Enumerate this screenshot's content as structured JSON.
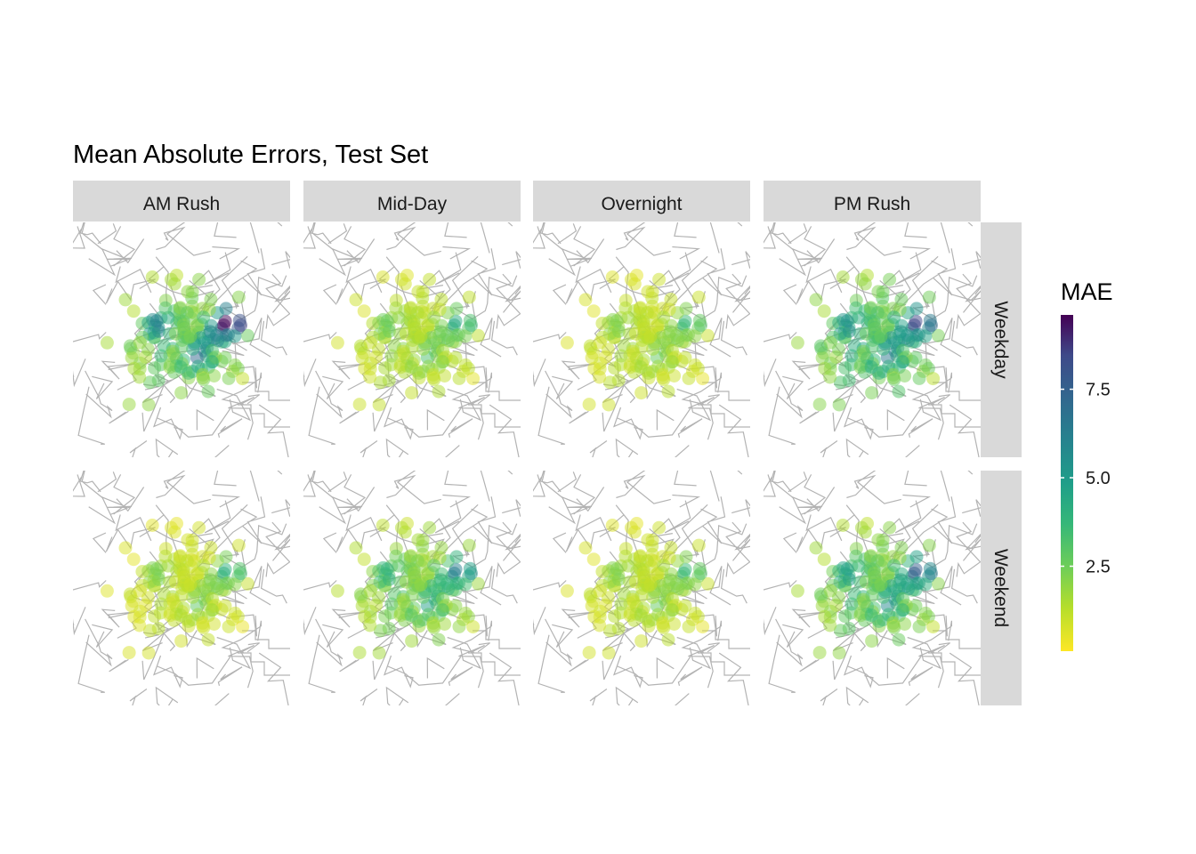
{
  "title": "Mean Absolute Errors, Test Set",
  "columns": [
    "AM Rush",
    "Mid-Day",
    "Overnight",
    "PM Rush"
  ],
  "rows": [
    "Weekday",
    "Weekend"
  ],
  "legend": {
    "title": "MAE",
    "ticks": [
      2.5,
      5.0,
      7.5
    ],
    "tick_labels": [
      "2.5",
      "5.0",
      "7.5"
    ],
    "range": [
      0.1,
      9.6
    ],
    "palette": "viridis (reversed: high = #440154, low = #fde725)"
  },
  "chart_data": {
    "type": "map",
    "panels": [
      {
        "column": "AM Rush",
        "row": "Weekday",
        "typical_mae": 2.4,
        "max_mae": 9.5
      },
      {
        "column": "Mid-Day",
        "row": "Weekday",
        "typical_mae": 1.3,
        "max_mae": 3.8
      },
      {
        "column": "Overnight",
        "row": "Weekday",
        "typical_mae": 1.1,
        "max_mae": 3.2
      },
      {
        "column": "PM Rush",
        "row": "Weekday",
        "typical_mae": 2.8,
        "max_mae": 7.6
      },
      {
        "column": "AM Rush",
        "row": "Weekend",
        "typical_mae": 1.0,
        "max_mae": 3.6
      },
      {
        "column": "Mid-Day",
        "row": "Weekend",
        "typical_mae": 2.0,
        "max_mae": 5.6
      },
      {
        "column": "Overnight",
        "row": "Weekend",
        "typical_mae": 1.1,
        "max_mae": 3.2
      },
      {
        "column": "PM Rush",
        "row": "Weekend",
        "typical_mae": 2.4,
        "max_mae": 6.8
      }
    ]
  }
}
